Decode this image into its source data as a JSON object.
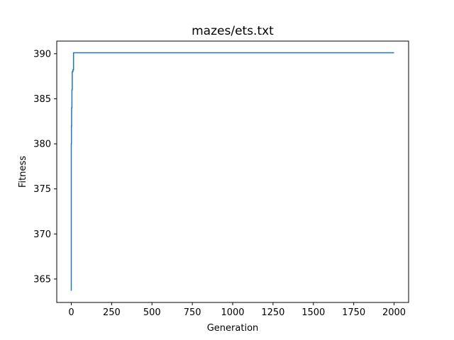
{
  "chart_data": {
    "type": "line",
    "title": "mazes/ets.txt",
    "xlabel": "Generation",
    "ylabel": "Fitness",
    "xlim": [
      -90,
      2090
    ],
    "ylim": [
      362.4,
      391.4
    ],
    "xticks": [
      0,
      250,
      500,
      750,
      1000,
      1250,
      1500,
      1750,
      2000
    ],
    "yticks": [
      365,
      370,
      375,
      380,
      385,
      390
    ],
    "grid": false,
    "legend": "none",
    "series": [
      {
        "color": "#1f77b4",
        "x": [
          0,
          0,
          1,
          1,
          2,
          2,
          4,
          4,
          6,
          6,
          10,
          10,
          14,
          14,
          2000
        ],
        "y": [
          363.7,
          380.0,
          380.0,
          382.0,
          382.0,
          384.0,
          384.0,
          386.0,
          386.0,
          388.0,
          388.0,
          388.2,
          388.2,
          390.1,
          390.1
        ]
      }
    ]
  }
}
